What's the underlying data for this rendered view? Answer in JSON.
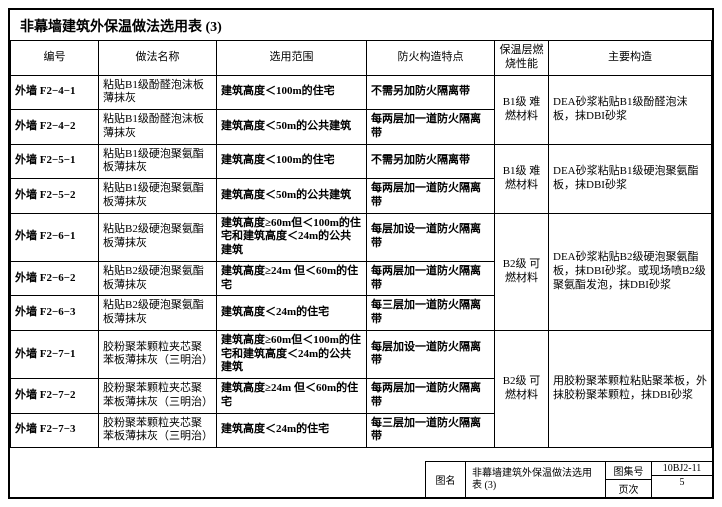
{
  "title": "非幕墙建筑外保温做法选用表 (3)",
  "columns": [
    "编号",
    "做法名称",
    "选用范围",
    "防火构造特点",
    "保温层燃烧性能",
    "主要构造"
  ],
  "groups": [
    {
      "perf": "B1级 难燃材料",
      "cons": "DEA砂浆粘贴B1级酚醛泡沫板，抹DBI砂浆",
      "rows": [
        {
          "id": "外墙 F2−4−1",
          "name": "粘贴B1级酚醛泡沫板薄抹灰",
          "scope": "建筑高度＜100m的住宅",
          "fire": "不需另加防火隔离带"
        },
        {
          "id": "外墙 F2−4−2",
          "name": "粘贴B1级酚醛泡沫板薄抹灰",
          "scope": "建筑高度＜50m的公共建筑",
          "fire": "每两层加一道防火隔离带"
        }
      ]
    },
    {
      "perf": "B1级 难燃材料",
      "cons": "DEA砂浆粘贴B1级硬泡聚氨酯板，抹DBI砂浆",
      "rows": [
        {
          "id": "外墙 F2−5−1",
          "name": "粘贴B1级硬泡聚氨酯板薄抹灰",
          "scope": "建筑高度＜100m的住宅",
          "fire": "不需另加防火隔离带"
        },
        {
          "id": "外墙 F2−5−2",
          "name": "粘贴B1级硬泡聚氨酯板薄抹灰",
          "scope": "建筑高度＜50m的公共建筑",
          "fire": "每两层加一道防火隔离带"
        }
      ]
    },
    {
      "perf": "B2级 可燃材料",
      "cons": "DEA砂浆粘贴B2级硬泡聚氨酯板，抹DBI砂浆。或现场喷B2级聚氨酯发泡，抹DBI砂浆",
      "rows": [
        {
          "id": "外墙 F2−6−1",
          "name": "粘贴B2级硬泡聚氨酯板薄抹灰",
          "scope": "建筑高度≥60m但＜100m的住宅和建筑高度＜24m的公共建筑",
          "fire": "每层加设一道防火隔离带"
        },
        {
          "id": "外墙 F2−6−2",
          "name": "粘贴B2级硬泡聚氨酯板薄抹灰",
          "scope": "建筑高度≥24m 但＜60m的住宅",
          "fire": "每两层加一道防火隔离带"
        },
        {
          "id": "外墙 F2−6−3",
          "name": "粘贴B2级硬泡聚氨酯板薄抹灰",
          "scope": "建筑高度＜24m的住宅",
          "fire": "每三层加一道防火隔离带"
        }
      ]
    },
    {
      "perf": "B2级 可燃材料",
      "cons": "用胶粉聚苯颗粒粘贴聚苯板，外抹胶粉聚苯颗粒，抹DBI砂浆",
      "rows": [
        {
          "id": "外墙 F2−7−1",
          "name": "胶粉聚苯颗粒夹芯聚苯板薄抹灰（三明治）",
          "scope": "建筑高度≥60m但＜100m的住宅和建筑高度＜24m的公共建筑",
          "fire": "每层加设一道防火隔离带"
        },
        {
          "id": "外墙 F2−7−2",
          "name": "胶粉聚苯颗粒夹芯聚苯板薄抹灰（三明治）",
          "scope": "建筑高度≥24m 但＜60m的住宅",
          "fire": "每两层加一道防火隔离带"
        },
        {
          "id": "外墙 F2−7−3",
          "name": "胶粉聚苯颗粒夹芯聚苯板薄抹灰（三明治）",
          "scope": "建筑高度＜24m的住宅",
          "fire": "每三层加一道防火隔离带"
        }
      ]
    }
  ],
  "footer": {
    "label": "图名",
    "name": "非幕墙建筑外保温做法选用表 (3)",
    "meta_labels": [
      "图集号",
      "页次"
    ],
    "meta_values": [
      "10BJ2-11",
      "5"
    ]
  }
}
